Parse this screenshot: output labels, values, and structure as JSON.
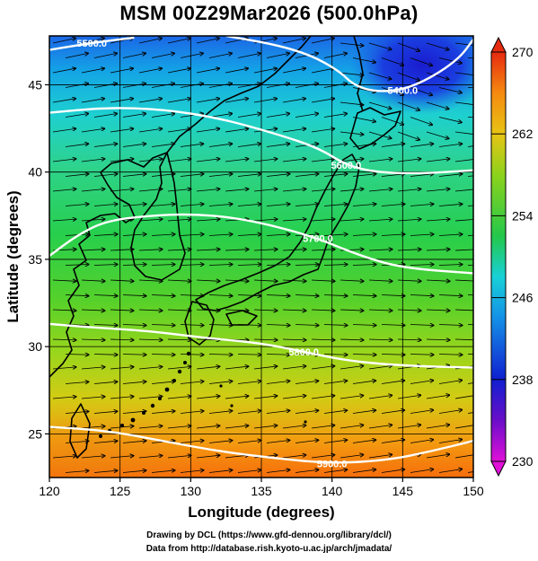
{
  "title": "MSM 00Z29Mar2026 (500.0hPa)",
  "xaxis": {
    "label": "Longitude (degrees)",
    "range": [
      120,
      150
    ],
    "ticks": [
      "120",
      "125",
      "130",
      "135",
      "140",
      "145",
      "150"
    ]
  },
  "yaxis": {
    "label": "Latitude  (degrees)",
    "range": [
      22.5,
      47.8
    ],
    "ticks": [
      "25",
      "30",
      "35",
      "40",
      "45"
    ]
  },
  "colorbar": {
    "range": [
      230,
      270
    ],
    "ticks": [
      "230",
      "238",
      "246",
      "254",
      "262",
      "270"
    ]
  },
  "contours": [
    {
      "label": "5400.0",
      "points": [
        [
          132.5,
          47.8
        ],
        [
          136,
          47.3
        ],
        [
          138.5,
          46.7
        ],
        [
          140.5,
          45.8
        ],
        [
          141.5,
          45.0
        ],
        [
          143,
          44.6
        ],
        [
          145,
          44.7
        ],
        [
          147,
          45.4
        ],
        [
          149,
          46.5
        ],
        [
          150,
          47.6
        ]
      ]
    },
    {
      "label": "5500.0",
      "points": [
        [
          120,
          47.0
        ],
        [
          123,
          47.4
        ],
        [
          126,
          47.7
        ]
      ]
    },
    {
      "label": "5600.0",
      "points": [
        [
          120,
          43.4
        ],
        [
          124,
          43.7
        ],
        [
          128,
          43.6
        ],
        [
          132,
          43.1
        ],
        [
          136,
          42.2
        ],
        [
          139,
          41.4
        ],
        [
          141,
          40.4
        ],
        [
          143,
          40.0
        ],
        [
          146,
          39.9
        ],
        [
          150,
          40.1
        ]
      ]
    },
    {
      "label": "5700.0",
      "points": [
        [
          120,
          35.2
        ],
        [
          122,
          36.4
        ],
        [
          124,
          37.2
        ],
        [
          127,
          37.5
        ],
        [
          130,
          37.6
        ],
        [
          133,
          37.4
        ],
        [
          136,
          36.9
        ],
        [
          139,
          36.2
        ],
        [
          142,
          35.2
        ],
        [
          145,
          34.5
        ],
        [
          150,
          34.2
        ]
      ]
    },
    {
      "label": "5800.0",
      "points": [
        [
          120,
          31.3
        ],
        [
          123,
          31.1
        ],
        [
          127,
          30.9
        ],
        [
          131,
          30.5
        ],
        [
          135,
          30.2
        ],
        [
          138,
          29.7
        ],
        [
          141,
          29.2
        ],
        [
          145,
          28.9
        ],
        [
          150,
          28.8
        ]
      ]
    },
    {
      "label": "5900.0",
      "points": [
        [
          120,
          25.4
        ],
        [
          124,
          25.2
        ],
        [
          128,
          24.6
        ],
        [
          132,
          24.0
        ],
        [
          136,
          23.6
        ],
        [
          140,
          23.3
        ],
        [
          144,
          23.5
        ],
        [
          147,
          24.0
        ],
        [
          150,
          24.6
        ]
      ]
    }
  ],
  "credits": {
    "line1": "Drawing by DCL (https://www.gfd-dennou.org/library/dcl/)",
    "line2": "Data from http://database.rish.kyoto-u.ac.jp/arch/jmadata/"
  }
}
